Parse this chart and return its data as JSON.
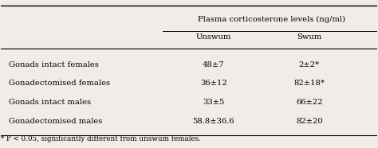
{
  "title": "Plasma corticosterone levels (ng/ml)",
  "col_headers": [
    "Unswum",
    "Swum"
  ],
  "row_labels": [
    "Gonads intact females",
    "Gonadectomised females",
    "Gonads intact males",
    "Gonadectomised males"
  ],
  "unswum": [
    "48±7",
    "36±12",
    "33±5",
    "58.8±36.6"
  ],
  "swum": [
    "2±2*",
    "82±18*",
    "66±22",
    "82±20"
  ],
  "footnote": "* P < 0.05, significantly different from unswum females.",
  "bg_color": "#f0ede8"
}
